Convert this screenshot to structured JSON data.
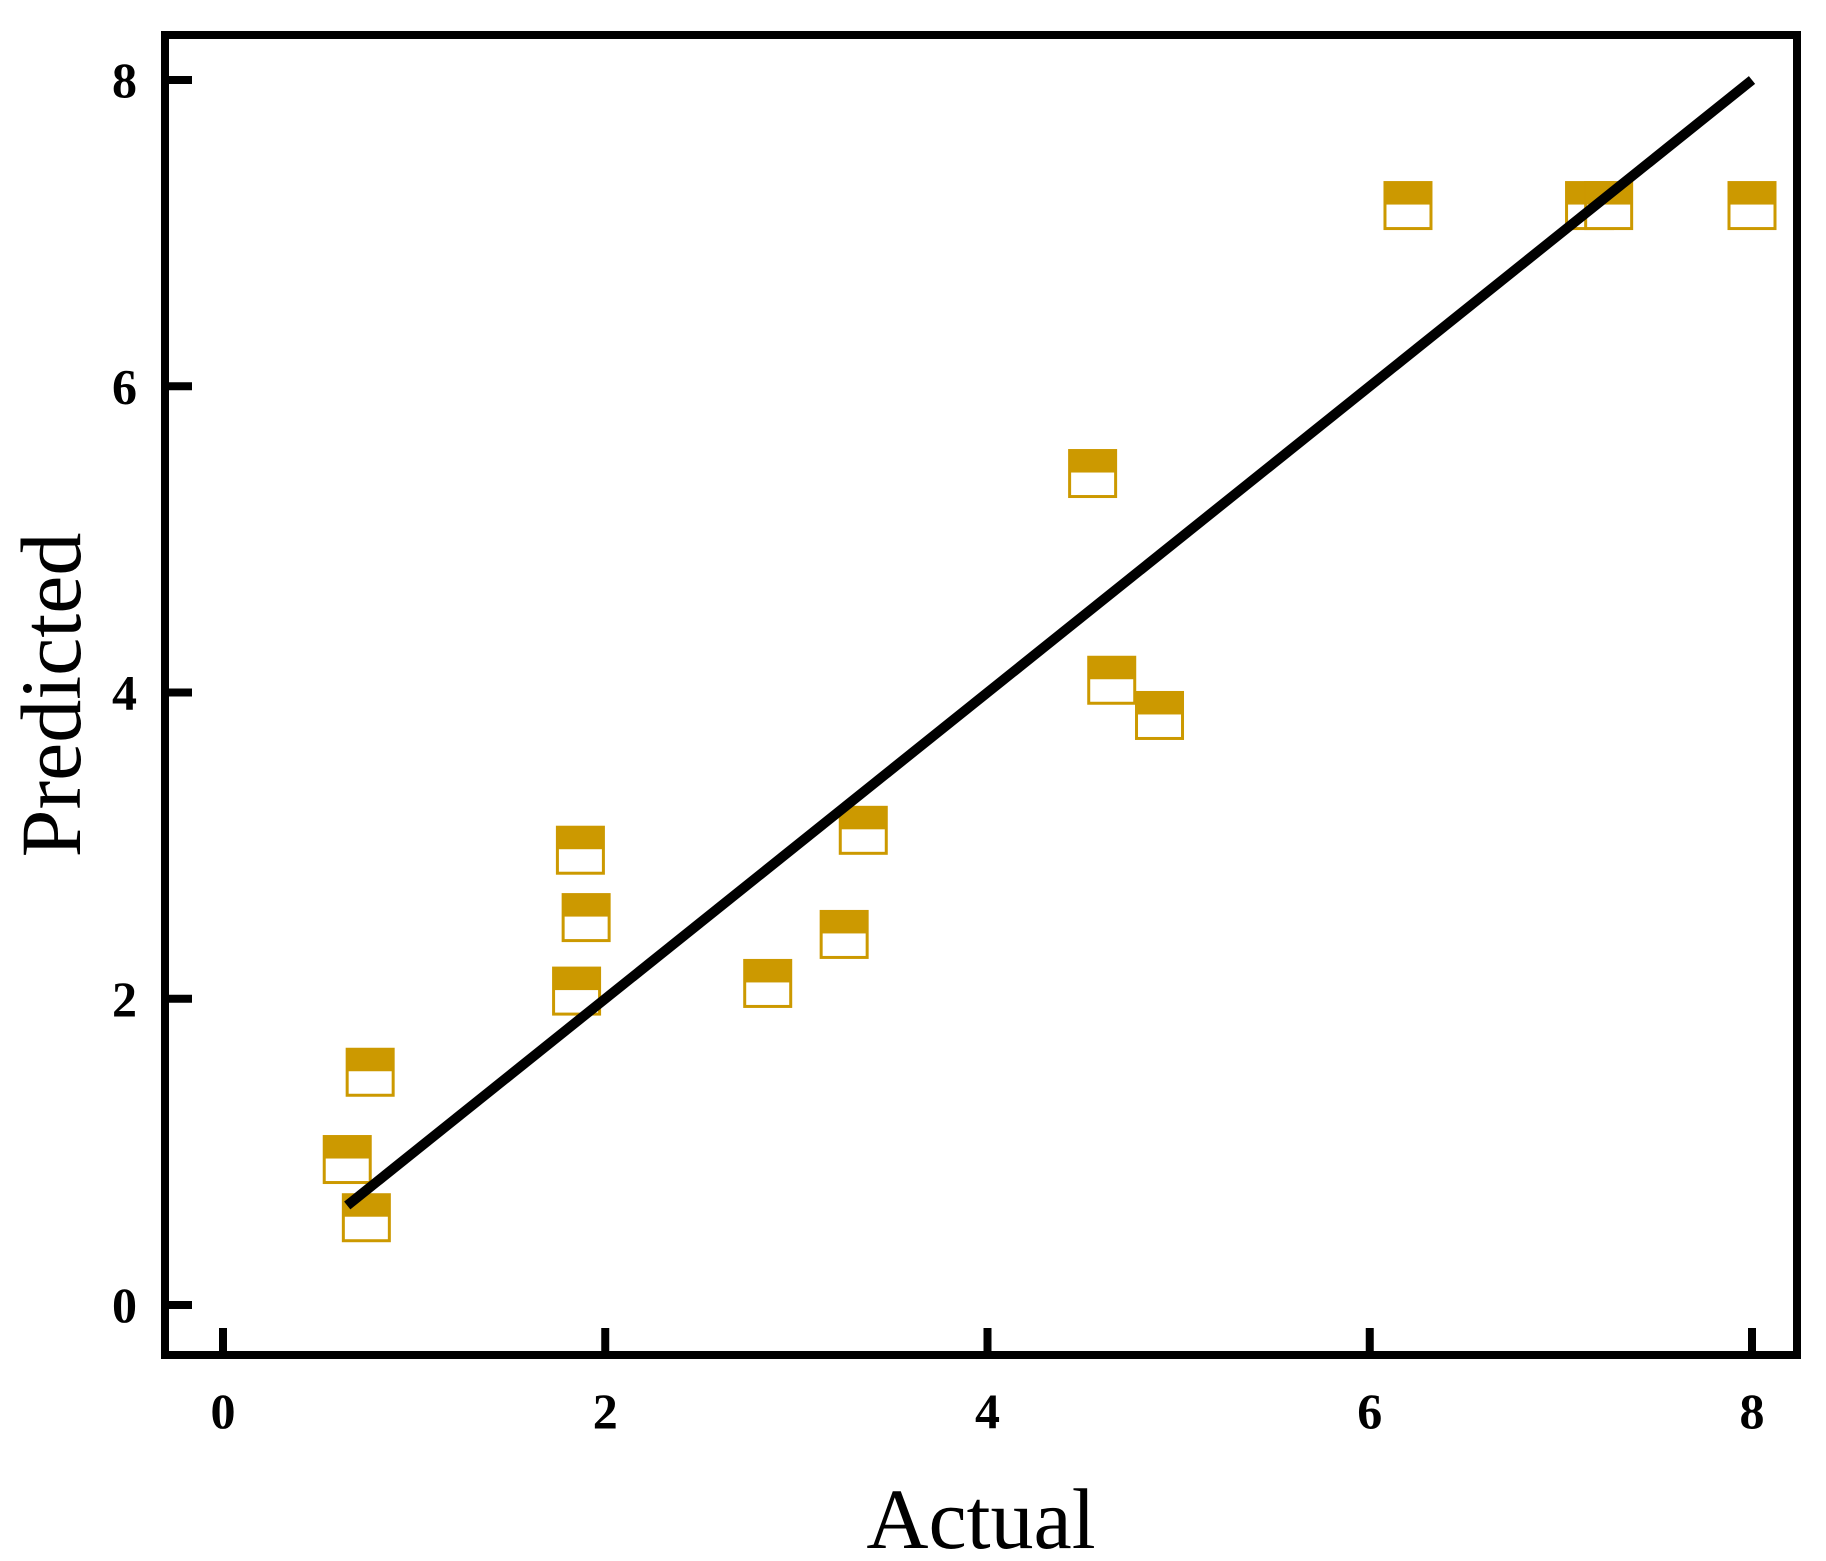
{
  "chart_data": {
    "type": "scatter",
    "title": "",
    "xlabel": "Actual",
    "ylabel": "Predicted",
    "xlim": [
      -0.3,
      8.3
    ],
    "ylim": [
      -0.3,
      8.3
    ],
    "xticks": [
      0,
      2,
      4,
      6,
      8
    ],
    "yticks": [
      0,
      2,
      4,
      6,
      8
    ],
    "grid": false,
    "legend": "none",
    "series": [
      {
        "marker": "square-half-filled",
        "color": "#CC9900",
        "points": [
          {
            "x": 0.65,
            "y": 0.95
          },
          {
            "x": 0.75,
            "y": 0.57
          },
          {
            "x": 0.77,
            "y": 1.52
          },
          {
            "x": 1.85,
            "y": 2.05
          },
          {
            "x": 1.87,
            "y": 2.97
          },
          {
            "x": 1.9,
            "y": 2.53
          },
          {
            "x": 2.85,
            "y": 2.1
          },
          {
            "x": 3.25,
            "y": 2.42
          },
          {
            "x": 3.35,
            "y": 3.1
          },
          {
            "x": 4.55,
            "y": 5.43
          },
          {
            "x": 4.65,
            "y": 4.08
          },
          {
            "x": 4.9,
            "y": 3.85
          },
          {
            "x": 6.2,
            "y": 7.18
          },
          {
            "x": 7.15,
            "y": 7.18
          },
          {
            "x": 7.25,
            "y": 7.18
          },
          {
            "x": 8.0,
            "y": 7.18
          }
        ]
      }
    ],
    "fit_line": {
      "color": "#000000",
      "x": [
        0.65,
        8.0
      ],
      "y": [
        0.65,
        8.0
      ]
    }
  }
}
